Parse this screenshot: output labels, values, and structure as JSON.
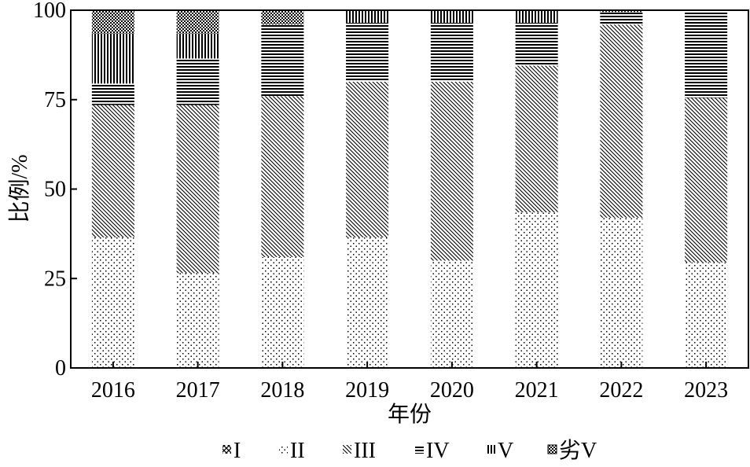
{
  "chart_data": {
    "type": "bar",
    "stacked": true,
    "categories": [
      "2016",
      "2017",
      "2018",
      "2019",
      "2020",
      "2021",
      "2022",
      "2023"
    ],
    "series": [
      {
        "name": "I",
        "pattern": "crosshatch",
        "values": [
          0,
          0,
          0,
          0,
          0,
          0,
          0,
          0
        ]
      },
      {
        "name": "II",
        "pattern": "dots",
        "values": [
          36.5,
          26.5,
          31,
          36.5,
          30,
          43.5,
          42,
          29.5
        ]
      },
      {
        "name": "III",
        "pattern": "diagonal",
        "values": [
          37,
          47,
          45,
          43.5,
          50,
          41,
          54,
          46
        ]
      },
      {
        "name": "IV",
        "pattern": "horizontal",
        "values": [
          6,
          13,
          20,
          16.5,
          16.5,
          12,
          3.5,
          24.5
        ]
      },
      {
        "name": "V",
        "pattern": "vertical",
        "values": [
          14,
          7,
          0,
          3.5,
          3.5,
          3.5,
          0,
          0
        ]
      },
      {
        "name": "劣V",
        "pattern": "checker",
        "values": [
          6.5,
          6.5,
          4,
          0,
          0,
          0,
          0.5,
          0
        ]
      }
    ],
    "xlabel": "年份",
    "ylabel": "比例/%",
    "ylim": [
      0,
      100
    ],
    "yticks": [
      "0",
      "25",
      "50",
      "75",
      "100"
    ],
    "grid": false,
    "legend_position": "bottom"
  }
}
